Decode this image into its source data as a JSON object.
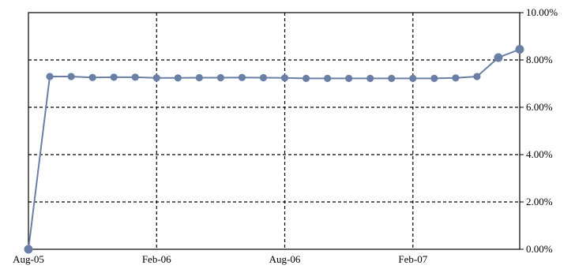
{
  "chart_data": {
    "type": "line",
    "title": "",
    "xlabel": "",
    "ylabel": "",
    "x_ticks": [
      "Aug-05",
      "Feb-06",
      "Aug-06",
      "Feb-07"
    ],
    "x_tick_index": [
      0,
      6,
      12,
      18
    ],
    "y_ticks": [
      "0.00%",
      "2.00%",
      "4.00%",
      "6.00%",
      "8.00%",
      "10.00%"
    ],
    "ylim": [
      0,
      10
    ],
    "y_unit": "%",
    "y_axis_side": "right",
    "grid": true,
    "grid_style": "dashed",
    "legend": "none",
    "x": [
      "Aug-05",
      "Sep-05",
      "Oct-05",
      "Nov-05",
      "Dec-05",
      "Jan-06",
      "Feb-06",
      "Mar-06",
      "Apr-06",
      "May-06",
      "Jun-06",
      "Jul-06",
      "Aug-06",
      "Sep-06",
      "Oct-06",
      "Nov-06",
      "Dec-06",
      "Jan-07",
      "Feb-07",
      "Mar-07",
      "Apr-07",
      "May-07",
      "Jun-07",
      "Jul-07"
    ],
    "series": [
      {
        "values": [
          0.0,
          7.3,
          7.3,
          7.26,
          7.27,
          7.27,
          7.24,
          7.24,
          7.25,
          7.25,
          7.26,
          7.25,
          7.24,
          7.22,
          7.22,
          7.22,
          7.22,
          7.22,
          7.22,
          7.22,
          7.24,
          7.3,
          8.1,
          8.45
        ],
        "color": "#6a7fa6"
      }
    ],
    "colors": {
      "line": "#6a7fa6",
      "marker": "#6a7fa6",
      "grid": "#000000",
      "axis": "#000000"
    }
  }
}
